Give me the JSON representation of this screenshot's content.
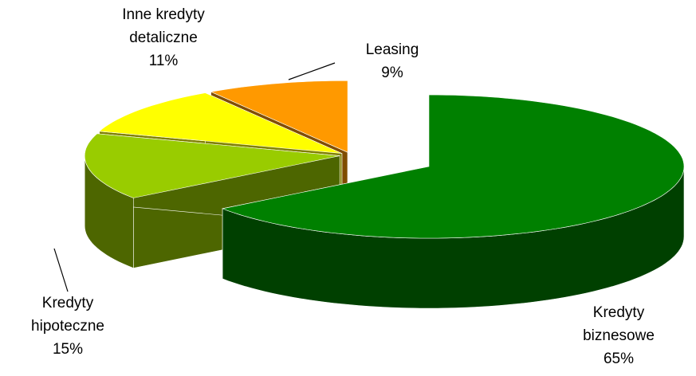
{
  "chart_data": {
    "type": "pie3d",
    "categories": [
      "Kredyty\nbiznesowe",
      "Kredyty\nhipoteczne",
      "Inne kredyty\ndetaliczne",
      "Leasing"
    ],
    "values": [
      65,
      15,
      11,
      9
    ],
    "value_labels": [
      "65%",
      "15%",
      "11%",
      "9%"
    ],
    "colors": [
      "#008000",
      "#99cc00",
      "#ffff00",
      "#ff9900"
    ]
  }
}
